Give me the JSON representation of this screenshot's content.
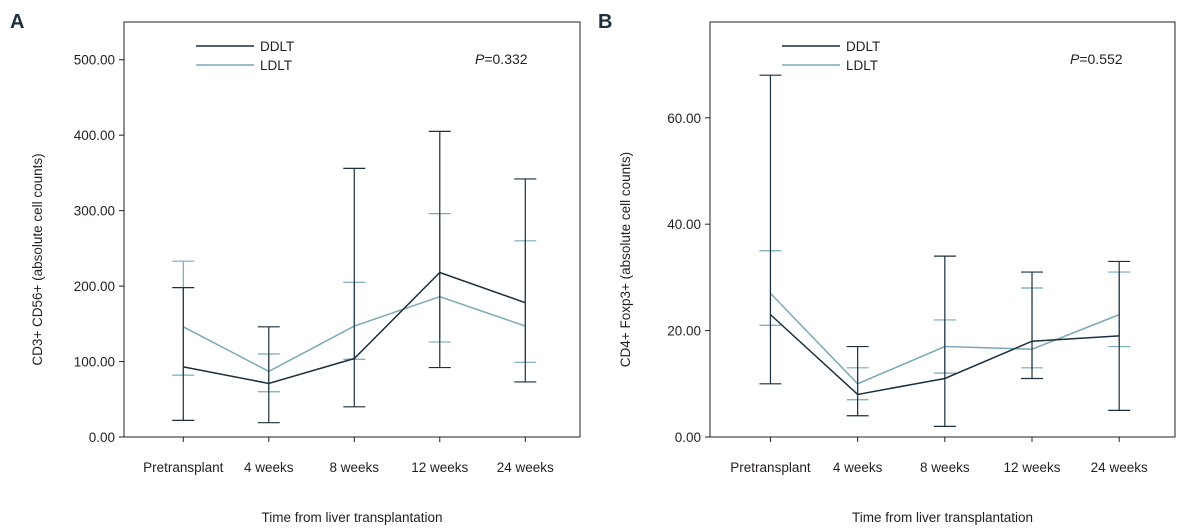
{
  "chart_data": [
    {
      "type": "line",
      "panel": "A",
      "xlabel": "Time from liver transplantation",
      "ylabel": "CD3+ CD56+ (absolute cell counts)",
      "categories": [
        "Pretransplant",
        "4 weeks",
        "8 weeks",
        "12 weeks",
        "24 weeks"
      ],
      "ylim": [
        0,
        550
      ],
      "yticks": [
        "0.00",
        "100.00",
        "200.00",
        "300.00",
        "400.00",
        "500.00"
      ],
      "annotation": {
        "italic": "P",
        "rest": "=0.332"
      },
      "legend_position": "top-left",
      "grid": false,
      "series": [
        {
          "name": "DDLT",
          "color": "#1b2f3e",
          "values": [
            93,
            71,
            104,
            218,
            178
          ],
          "err_low": [
            22,
            19,
            40,
            92,
            73
          ],
          "err_high": [
            198,
            146,
            356,
            405,
            342
          ]
        },
        {
          "name": "LDLT",
          "color": "#7aa8b8",
          "values": [
            146,
            87,
            147,
            186,
            147
          ],
          "err_low": [
            82,
            60,
            103,
            126,
            99
          ],
          "err_high": [
            233,
            110,
            205,
            296,
            260
          ]
        }
      ]
    },
    {
      "type": "line",
      "panel": "B",
      "xlabel": "Time from liver transplantation",
      "ylabel": "CD4+ Foxp3+ (absolute cell counts)",
      "categories": [
        "Pretransplant",
        "4 weeks",
        "8 weeks",
        "12 weeks",
        "24 weeks"
      ],
      "ylim": [
        0,
        78
      ],
      "yticks": [
        "0.00",
        "20.00",
        "40.00",
        "60.00"
      ],
      "annotation": {
        "italic": "P",
        "rest": "=0.552"
      },
      "legend_position": "top-left",
      "grid": false,
      "series": [
        {
          "name": "DDLT",
          "color": "#1b2f3e",
          "values": [
            23,
            8,
            11,
            18,
            19
          ],
          "err_low": [
            10,
            4,
            2,
            11,
            5
          ],
          "err_high": [
            68,
            17,
            34,
            31,
            33
          ]
        },
        {
          "name": "LDLT",
          "color": "#7aa8b8",
          "values": [
            27,
            10,
            17,
            16.5,
            23
          ],
          "err_low": [
            21,
            7,
            12,
            13,
            17
          ],
          "err_high": [
            35,
            13,
            22,
            28,
            31
          ]
        }
      ]
    }
  ]
}
